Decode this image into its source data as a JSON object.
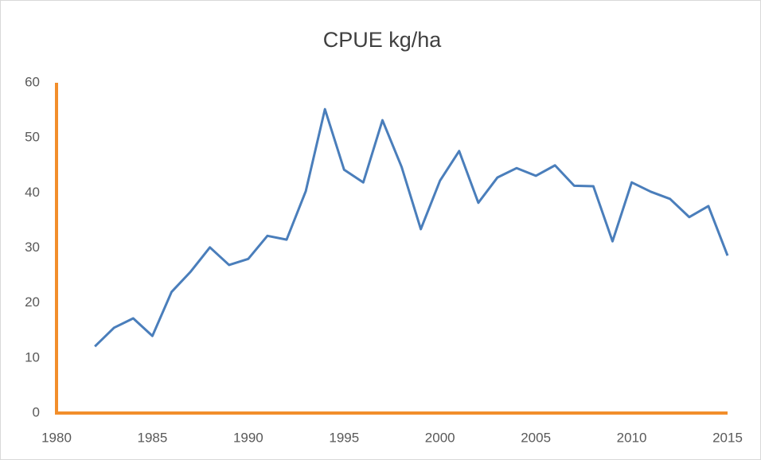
{
  "chart_data": {
    "type": "line",
    "title": "CPUE kg/ha",
    "x": [
      1982,
      1983,
      1984,
      1985,
      1986,
      1987,
      1988,
      1989,
      1990,
      1991,
      1992,
      1993,
      1994,
      1995,
      1996,
      1997,
      1998,
      1999,
      2000,
      2001,
      2002,
      2003,
      2004,
      2005,
      2006,
      2007,
      2008,
      2009,
      2010,
      2011,
      2012,
      2013,
      2014,
      2015
    ],
    "series": [
      {
        "name": "CPUE kg/ha",
        "color": "#4a7ebb",
        "values": [
          12.1,
          15.5,
          17.2,
          14.0,
          22.0,
          25.7,
          30.1,
          26.9,
          28.0,
          32.2,
          31.5,
          40.3,
          55.2,
          44.2,
          41.9,
          53.2,
          44.7,
          33.4,
          42.2,
          47.6,
          38.2,
          42.8,
          44.5,
          43.1,
          45.0,
          41.3,
          41.2,
          31.2,
          41.9,
          40.2,
          38.9,
          35.6,
          37.6,
          28.6
        ]
      }
    ],
    "xlim": [
      1980,
      2015
    ],
    "xticks": [
      1980,
      1985,
      1990,
      1995,
      2000,
      2005,
      2010,
      2015
    ],
    "ylim": [
      0,
      60
    ],
    "yticks": [
      0,
      10,
      20,
      30,
      40,
      50,
      60
    ],
    "axis_color": "#f28e2b",
    "grid": false,
    "legend": false
  }
}
